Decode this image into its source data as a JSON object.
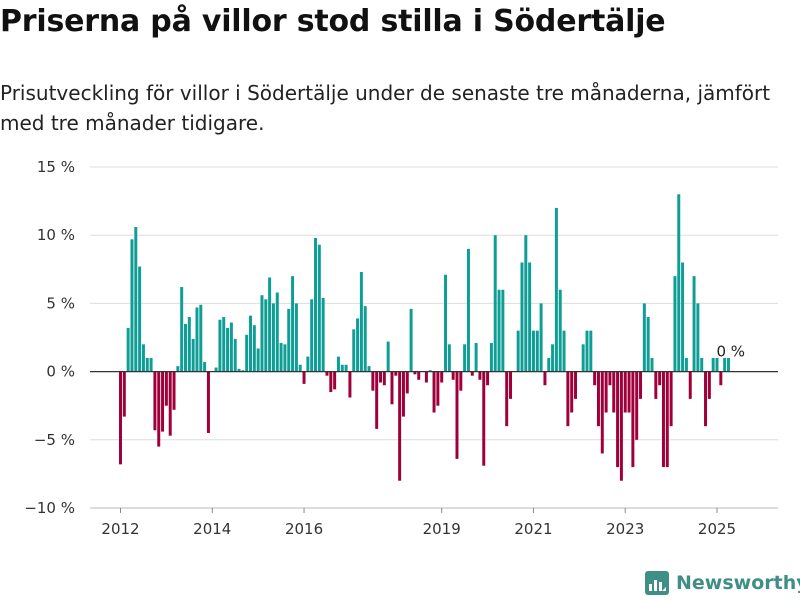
{
  "title": "Priserna på villor stod stilla i Södertälje",
  "subtitle": "Prisutveckling för villor i Södertälje under de senaste tre månaderna, jämfört med tre månader tidigare.",
  "brand": {
    "name": "Newsworthy",
    "icon": "newsworthy-logo-icon",
    "color": "#3f8f86"
  },
  "colors": {
    "positive": "#0f9e96",
    "negative": "#a0003a",
    "zero_line": "#333333",
    "grid": "#dddddd"
  },
  "chart_data": {
    "type": "bar",
    "title": "Priserna på villor stod stilla i Södertälje",
    "xlabel": "",
    "ylabel": "",
    "unit": "%",
    "ylim": [
      -10,
      15
    ],
    "y_ticks": [
      {
        "value": 15,
        "label": "15 %"
      },
      {
        "value": 10,
        "label": "10 %"
      },
      {
        "value": 5,
        "label": "5 %"
      },
      {
        "value": 0,
        "label": "0 %"
      },
      {
        "value": -5,
        "label": "−5 %"
      },
      {
        "value": -10,
        "label": "−10 %"
      }
    ],
    "x_ticks": [
      {
        "value": 2012,
        "label": "2012"
      },
      {
        "value": 2014,
        "label": "2014"
      },
      {
        "value": 2016,
        "label": "2016"
      },
      {
        "value": 2019,
        "label": "2019"
      },
      {
        "value": 2021,
        "label": "2021"
      },
      {
        "value": 2023,
        "label": "2023"
      },
      {
        "value": 2025,
        "label": "2025"
      }
    ],
    "grid": true,
    "x_start": "2012-01",
    "last_value_label": "0 %",
    "values": [
      -6.8,
      -3.3,
      3.2,
      9.7,
      10.6,
      7.7,
      2.0,
      1.0,
      1.0,
      -4.3,
      -5.5,
      -4.4,
      -2.5,
      -4.7,
      -2.8,
      0.4,
      6.2,
      3.5,
      4.0,
      2.4,
      4.7,
      4.9,
      0.7,
      -4.5,
      0.0,
      0.3,
      3.8,
      4.0,
      3.2,
      3.6,
      2.4,
      0.2,
      0.1,
      2.7,
      4.1,
      3.4,
      1.7,
      5.6,
      5.3,
      6.9,
      5.0,
      5.8,
      2.1,
      2.0,
      4.6,
      7.0,
      5.0,
      0.5,
      -0.9,
      1.1,
      5.3,
      9.8,
      9.3,
      5.4,
      -0.3,
      -1.5,
      -1.3,
      1.1,
      0.5,
      0.5,
      -1.9,
      3.1,
      3.9,
      7.3,
      4.8,
      0.4,
      -1.4,
      -4.2,
      -0.8,
      -1.0,
      2.2,
      -2.4,
      -0.3,
      -8.0,
      -3.3,
      -1.6,
      4.6,
      -0.2,
      -0.6,
      0.0,
      -0.8,
      0.1,
      -3.0,
      -2.5,
      -0.8,
      7.1,
      2.0,
      -0.6,
      -6.4,
      -1.4,
      2.0,
      9.0,
      -0.3,
      2.1,
      -0.6,
      -6.9,
      -1.0,
      2.1,
      10.0,
      6.0,
      6.0,
      -4.0,
      -2.0,
      0.0,
      3.0,
      8.0,
      10.0,
      8.0,
      3.0,
      3.0,
      5.0,
      -1.0,
      1.0,
      2.0,
      12.0,
      6.0,
      3.0,
      -4.0,
      -3.0,
      -2.0,
      0.0,
      2.0,
      3.0,
      3.0,
      -1.0,
      -4.0,
      -6.0,
      -3.0,
      -1.0,
      -3.0,
      -7.0,
      -8.0,
      -3.0,
      -3.0,
      -7.0,
      -5.0,
      -2.0,
      5.0,
      4.0,
      1.0,
      -2.0,
      -1.0,
      -7.0,
      -7.0,
      -4.0,
      7.0,
      13.0,
      8.0,
      1.0,
      -2.0,
      7.0,
      5.0,
      1.0,
      -4.0,
      -2.0,
      1.0,
      1.0,
      -1.0,
      1.0,
      1.0
    ]
  }
}
